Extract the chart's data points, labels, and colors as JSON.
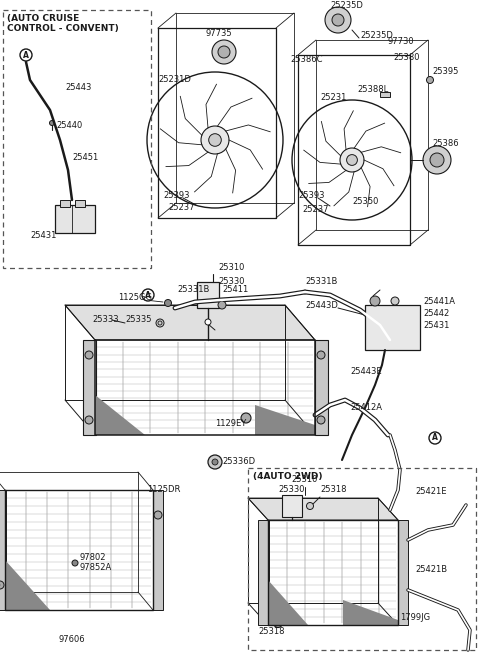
{
  "bg_color": "#ffffff",
  "line_color": "#1a1a1a",
  "fig_width": 4.8,
  "fig_height": 6.55,
  "dpi": 100,
  "labels": {
    "auto_cruise": "(AUTO CRUISE\nCONTROL - CONVENT)",
    "4auto_2wd": "(4AUTO 2WD)",
    "25443": "25443",
    "25440": "25440",
    "25451": "25451",
    "25431_left": "25431",
    "25231D": "25231D",
    "25393_left": "25393",
    "25237_left": "25237",
    "97735": "97735",
    "25235D_top": "25235D",
    "25235D_mid": "25235D",
    "97730": "97730",
    "25386C": "25386C",
    "25380": "25380",
    "25388L": "25388L",
    "25395": "25395",
    "25231": "25231",
    "25393_right": "25393",
    "25350": "25350",
    "25237_right": "25237",
    "25386": "25386",
    "25310_top": "25310",
    "25330_top": "25330",
    "1125GG": "1125GG",
    "25333": "25333",
    "25335": "25335",
    "25331B_left": "25331B",
    "25411": "25411",
    "25331B_right": "25331B",
    "1129EY": "1129EY",
    "25412A": "25412A",
    "25443D": "25443D",
    "25441A": "25441A",
    "25442": "25442",
    "25431_right": "25431",
    "25443E": "25443E",
    "1125DR": "1125DR",
    "25336D": "25336D",
    "97802": "97802",
    "97852A": "97852A",
    "97606": "97606",
    "25310_bot": "25310",
    "25330_bot": "25330",
    "25318_top": "25318",
    "25318_bot": "25318",
    "25421E": "25421E",
    "25421B": "25421B",
    "1799JG": "1799JG"
  }
}
